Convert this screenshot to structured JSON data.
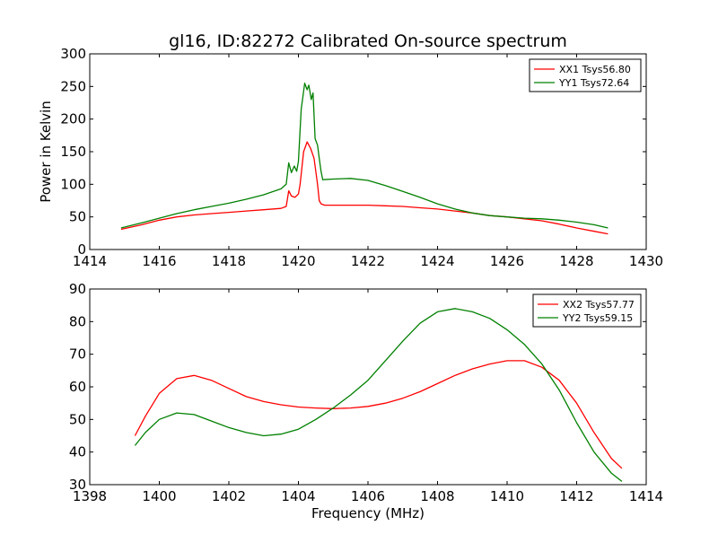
{
  "chart_data": [
    {
      "type": "line",
      "title": "gl16, ID:82272 Calibrated On-source spectrum",
      "xlabel": "",
      "ylabel": "Power in Kelvin",
      "xlim": [
        1414,
        1430
      ],
      "ylim": [
        0,
        300
      ],
      "xticks": [
        1414,
        1416,
        1418,
        1420,
        1422,
        1424,
        1426,
        1428,
        1430
      ],
      "yticks": [
        0,
        50,
        100,
        150,
        200,
        250,
        300
      ],
      "legend_position": "top-right",
      "series": [
        {
          "name": "XX1 Tsys56.80",
          "color": "#ff0000",
          "x": [
            1414.9,
            1415.5,
            1416.0,
            1416.5,
            1417.0,
            1417.5,
            1418.0,
            1418.5,
            1419.0,
            1419.5,
            1419.65,
            1419.72,
            1419.8,
            1419.9,
            1420.0,
            1420.05,
            1420.15,
            1420.25,
            1420.35,
            1420.45,
            1420.55,
            1420.6,
            1420.65,
            1420.75,
            1421.0,
            1421.5,
            1422.0,
            1422.5,
            1423.0,
            1423.5,
            1424.0,
            1424.5,
            1425.0,
            1425.5,
            1426.0,
            1426.5,
            1427.0,
            1427.5,
            1428.0,
            1428.5,
            1428.9
          ],
          "y": [
            31,
            38,
            45,
            50,
            53,
            55,
            57,
            59,
            61,
            63,
            66,
            90,
            82,
            80,
            85,
            100,
            150,
            165,
            155,
            140,
            100,
            75,
            70,
            68,
            68,
            68,
            68,
            67,
            66,
            64,
            62,
            59,
            56,
            52,
            50,
            47,
            44,
            39,
            33,
            28,
            24
          ]
        },
        {
          "name": "YY1 Tsys72.64",
          "color": "#008000",
          "x": [
            1414.9,
            1415.5,
            1416.0,
            1416.5,
            1417.0,
            1417.5,
            1418.0,
            1418.5,
            1419.0,
            1419.5,
            1419.65,
            1419.72,
            1419.8,
            1419.88,
            1419.95,
            1420.0,
            1420.08,
            1420.18,
            1420.25,
            1420.3,
            1420.37,
            1420.42,
            1420.48,
            1420.55,
            1420.6,
            1420.65,
            1420.7,
            1421.0,
            1421.5,
            1422.0,
            1422.5,
            1423.0,
            1423.5,
            1424.0,
            1424.5,
            1425.0,
            1425.5,
            1426.0,
            1426.5,
            1427.0,
            1427.5,
            1428.0,
            1428.5,
            1428.9
          ],
          "y": [
            33,
            41,
            48,
            55,
            61,
            66,
            71,
            77,
            84,
            93,
            100,
            133,
            118,
            128,
            120,
            135,
            215,
            255,
            245,
            252,
            230,
            240,
            170,
            160,
            140,
            120,
            107,
            108,
            109,
            106,
            98,
            89,
            80,
            70,
            62,
            56,
            52,
            50,
            48,
            47,
            45,
            42,
            38,
            33
          ]
        }
      ]
    },
    {
      "type": "line",
      "title": "",
      "xlabel": "Frequency (MHz)",
      "ylabel": "",
      "xlim": [
        1398,
        1414
      ],
      "ylim": [
        30,
        90
      ],
      "xticks": [
        1398,
        1400,
        1402,
        1404,
        1406,
        1408,
        1410,
        1412,
        1414
      ],
      "yticks": [
        30,
        40,
        50,
        60,
        70,
        80,
        90
      ],
      "legend_position": "top-right",
      "series": [
        {
          "name": "XX2 Tsys57.77",
          "color": "#ff0000",
          "x": [
            1399.3,
            1399.6,
            1400.0,
            1400.5,
            1401.0,
            1401.5,
            1402.0,
            1402.5,
            1403.0,
            1403.5,
            1404.0,
            1404.5,
            1405.0,
            1405.5,
            1406.0,
            1406.5,
            1407.0,
            1407.5,
            1408.0,
            1408.5,
            1409.0,
            1409.5,
            1410.0,
            1410.5,
            1411.0,
            1411.5,
            1412.0,
            1412.5,
            1413.0,
            1413.3
          ],
          "y": [
            45,
            51,
            58,
            62.5,
            63.5,
            62,
            59.5,
            57,
            55.5,
            54.5,
            53.8,
            53.5,
            53.3,
            53.5,
            54,
            55,
            56.5,
            58.5,
            61,
            63.5,
            65.5,
            67,
            68,
            68,
            66,
            62,
            55,
            46,
            38,
            35
          ]
        },
        {
          "name": "YY2 Tsys59.15",
          "color": "#008000",
          "x": [
            1399.3,
            1399.6,
            1400.0,
            1400.5,
            1401.0,
            1401.5,
            1402.0,
            1402.5,
            1403.0,
            1403.5,
            1404.0,
            1404.5,
            1405.0,
            1405.5,
            1406.0,
            1406.5,
            1407.0,
            1407.5,
            1408.0,
            1408.5,
            1409.0,
            1409.5,
            1410.0,
            1410.5,
            1411.0,
            1411.5,
            1412.0,
            1412.5,
            1413.0,
            1413.3
          ],
          "y": [
            42,
            46,
            50,
            52,
            51.5,
            49.5,
            47.5,
            46,
            45,
            45.5,
            47,
            50,
            53.5,
            57.5,
            62,
            68,
            74,
            79.5,
            83,
            84,
            83,
            81,
            77.5,
            73,
            67,
            59,
            49,
            40,
            33.5,
            31
          ]
        }
      ]
    }
  ]
}
